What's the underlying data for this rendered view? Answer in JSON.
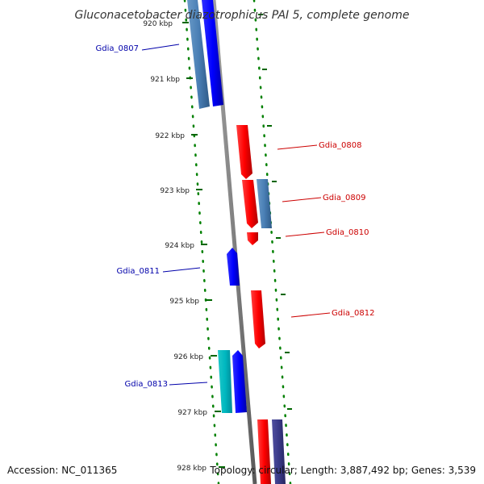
{
  "title": "Gluconacetobacter diazotrophicus PAI 5, complete genome",
  "footer": {
    "accession": "Accession: NC_011365",
    "summary": "Topology: circular; Length: 3,887,492 bp; Genes: 3,539"
  },
  "colors": {
    "forward_label": "#cc0000",
    "reverse_label": "#0000aa",
    "backbone": "#808080",
    "dots": "#008000"
  },
  "ticks": [
    "920 kbp",
    "921 kbp",
    "922 kbp",
    "923 kbp",
    "924 kbp",
    "925 kbp",
    "926 kbp",
    "927 kbp",
    "928 kbp"
  ],
  "genes": [
    {
      "label": "Gdia_0807",
      "strand": "reverse",
      "side": "left"
    },
    {
      "label": "Gdia_0808",
      "strand": "forward",
      "side": "right"
    },
    {
      "label": "Gdia_0809",
      "strand": "forward",
      "side": "right"
    },
    {
      "label": "Gdia_0810",
      "strand": "forward",
      "side": "right"
    },
    {
      "label": "Gdia_0811",
      "strand": "reverse",
      "side": "left"
    },
    {
      "label": "Gdia_0812",
      "strand": "forward",
      "side": "right"
    },
    {
      "label": "Gdia_0813",
      "strand": "reverse",
      "side": "left"
    }
  ]
}
